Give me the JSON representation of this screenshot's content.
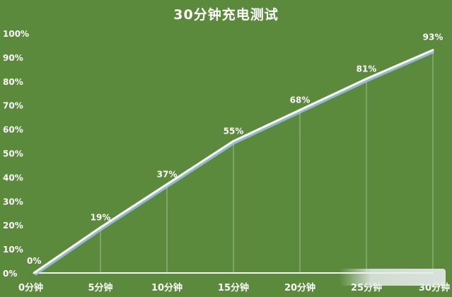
{
  "chart_data": {
    "type": "line",
    "title": "30分钟充电测试",
    "categories": [
      "0分钟",
      "5分钟",
      "10分钟",
      "15分钟",
      "20分钟",
      "25分钟",
      "30分钟"
    ],
    "x": [
      0,
      5,
      10,
      15,
      20,
      25,
      30
    ],
    "values": [
      0,
      19,
      37,
      55,
      68,
      81,
      93
    ],
    "data_labels": [
      "0%",
      "19%",
      "37%",
      "55%",
      "68%",
      "81%",
      "93%"
    ],
    "y_ticks": [
      "0%",
      "10%",
      "20%",
      "30%",
      "40%",
      "50%",
      "60%",
      "70%",
      "80%",
      "90%",
      "100%"
    ],
    "ylim": [
      0,
      100
    ],
    "xlim": [
      0,
      30
    ],
    "grid": false,
    "drop_lines": true,
    "colors": {
      "background": "#5b8a3c",
      "line": "#ffffff",
      "line_shadow": "#9ec7e6",
      "text": "#ffffff"
    }
  }
}
